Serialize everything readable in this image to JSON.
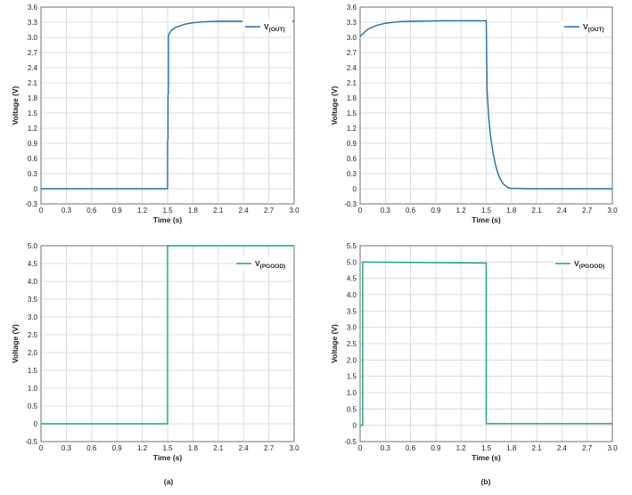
{
  "captions": [
    "(a)",
    "(b)"
  ],
  "chart_data": [
    {
      "type": "line",
      "xlabel": "Time (s)",
      "ylabel": "Voltage (V)",
      "xlim": [
        0,
        3.0
      ],
      "ylim": [
        -0.3,
        3.6
      ],
      "xticks": [
        "0",
        "0.3",
        "0.6",
        "0.9",
        "1.2",
        "1.5",
        "1.8",
        "2.1",
        "2.4",
        "2.7",
        "3.0"
      ],
      "yticks": [
        "-0.3",
        "0",
        "0.3",
        "0.6",
        "0.9",
        "1.2",
        "1.5",
        "1.8",
        "2.1",
        "2.4",
        "2.7",
        "3.0",
        "3.3",
        "3.6"
      ],
      "grid": true,
      "legend_position": "top-right",
      "color": "#1f6fae",
      "series": [
        {
          "name": "V",
          "name_sub": "(OUT)",
          "x": [
            0,
            1.49,
            1.5,
            1.5,
            1.505,
            1.505,
            1.51,
            1.51,
            1.52,
            1.55,
            1.6,
            1.7,
            1.8,
            1.9,
            2.0,
            2.1,
            2.3,
            2.5,
            3.0
          ],
          "y": [
            0,
            0,
            0,
            0.95,
            0.98,
            1.85,
            1.88,
            3.03,
            3.08,
            3.15,
            3.2,
            3.26,
            3.29,
            3.305,
            3.315,
            3.32,
            3.32,
            3.32,
            3.32
          ]
        }
      ]
    },
    {
      "type": "line",
      "xlabel": "Time (s)",
      "ylabel": "Voltage (V)",
      "xlim": [
        0,
        3.0
      ],
      "ylim": [
        -0.3,
        3.6
      ],
      "xticks": [
        "0",
        "0.3",
        "0.6",
        "0.9",
        "1.2",
        "1.5",
        "1.8",
        "2.1",
        "2.4",
        "2.7",
        "3.0"
      ],
      "yticks": [
        "-0.3",
        "0",
        "0.3",
        "0.6",
        "0.9",
        "1.2",
        "1.5",
        "1.8",
        "2.1",
        "2.4",
        "2.7",
        "3.0",
        "3.3",
        "3.6"
      ],
      "grid": true,
      "legend_position": "top-right",
      "color": "#1f6fae",
      "series": [
        {
          "name": "V",
          "name_sub": "(OUT)",
          "x": [
            0,
            0.05,
            0.1,
            0.2,
            0.3,
            0.45,
            0.6,
            0.8,
            1.0,
            1.2,
            1.5,
            1.5,
            1.51,
            1.53,
            1.55,
            1.58,
            1.61,
            1.64,
            1.67,
            1.7,
            1.74,
            1.78,
            2.0,
            3.0
          ],
          "y": [
            3.02,
            3.1,
            3.17,
            3.24,
            3.28,
            3.31,
            3.32,
            3.325,
            3.33,
            3.33,
            3.33,
            3.33,
            1.95,
            1.4,
            1.05,
            0.72,
            0.47,
            0.3,
            0.18,
            0.1,
            0.04,
            0.01,
            0.0,
            0.0
          ]
        }
      ]
    },
    {
      "type": "line",
      "xlabel": "Time (s)",
      "ylabel": "Voltage (V)",
      "xlim": [
        0,
        3.0
      ],
      "ylim": [
        -0.5,
        5.0
      ],
      "xticks": [
        "0",
        "0.3",
        "0.6",
        "0.9",
        "1.2",
        "1.5",
        "1.8",
        "2.1",
        "2.4",
        "2.7",
        "3.0"
      ],
      "yticks": [
        "-0.5",
        "0",
        "0.5",
        "1.0",
        "1.5",
        "2.0",
        "2.5",
        "3.0",
        "3.5",
        "4.0",
        "4.5",
        "5.0"
      ],
      "grid": true,
      "legend_position": "top-right",
      "color": "#1aa37a",
      "series": [
        {
          "name": "V",
          "name_sub": "(PGOOD)",
          "x": [
            0,
            1.5,
            1.5,
            3.0
          ],
          "y": [
            0,
            0,
            5.0,
            5.0
          ]
        }
      ]
    },
    {
      "type": "line",
      "xlabel": "Time (s)",
      "ylabel": "Voltage (V)",
      "xlim": [
        0,
        3.0
      ],
      "ylim": [
        -0.5,
        5.5
      ],
      "xticks": [
        "0",
        "0.3",
        "0.6",
        "0.9",
        "1.2",
        "1.5",
        "1.8",
        "2.1",
        "2.4",
        "2.7",
        "3.0"
      ],
      "yticks": [
        "-0.5",
        "0",
        "0.5",
        "1.0",
        "1.5",
        "2.0",
        "2.5",
        "3.0",
        "3.5",
        "4.0",
        "4.5",
        "5.0",
        "5.5"
      ],
      "grid": true,
      "legend_position": "top-right",
      "color": "#1aa37a",
      "series": [
        {
          "name": "V",
          "name_sub": "(PGOOD)",
          "x": [
            0,
            0.03,
            0.03,
            1.5,
            1.5,
            3.0
          ],
          "y": [
            0,
            0,
            5.0,
            4.97,
            0.05,
            0.05
          ]
        }
      ]
    }
  ]
}
